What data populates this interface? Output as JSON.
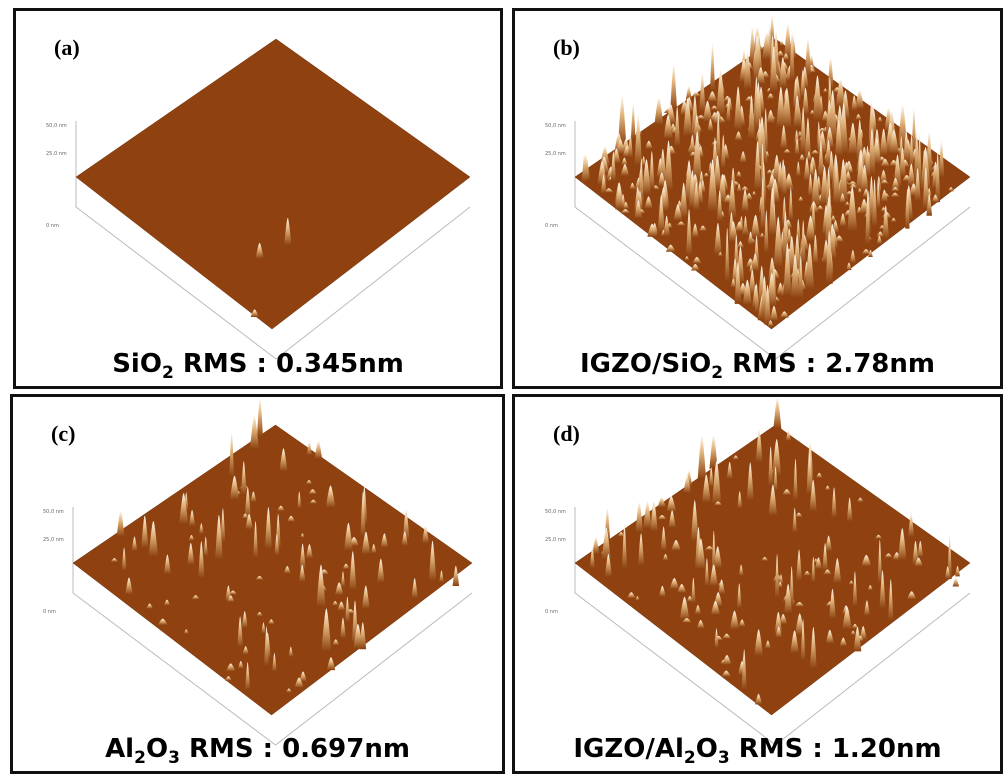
{
  "panels": [
    {
      "label": "(a)",
      "caption": [
        "SiO",
        "2",
        " RMS : 0.345nm"
      ],
      "z_labels": [
        "50,0 nm",
        "25,0 nm",
        "0 nm"
      ]
    },
    {
      "label": "(b)",
      "caption": [
        "IGZO/SiO",
        "2",
        " RMS : 2.78nm"
      ],
      "z_labels": [
        "50,0 nm",
        "25,0 nm",
        "0 nm"
      ]
    },
    {
      "label": "(c)",
      "caption": [
        "Al",
        "2",
        "O",
        "3",
        " RMS : 0.697nm"
      ],
      "z_labels": [
        "50,0 nm",
        "25,0 nm",
        "0 nm"
      ]
    },
    {
      "label": "(d)",
      "caption": [
        "IGZO/Al",
        "2",
        "O",
        "3",
        " RMS : 1.20nm"
      ],
      "z_labels": [
        "50,0 nm",
        "25,0 nm",
        "0 nm"
      ]
    }
  ]
}
